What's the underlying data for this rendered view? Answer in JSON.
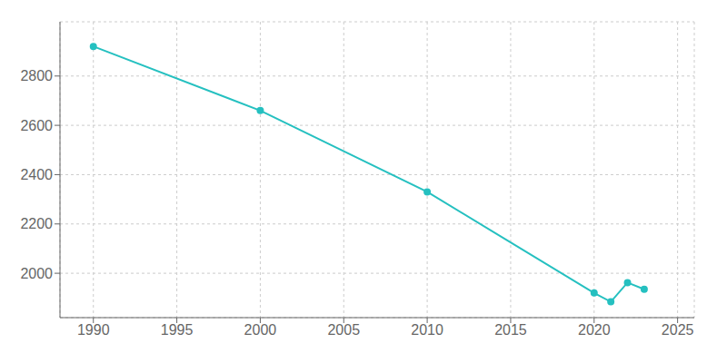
{
  "chart_data": {
    "type": "line",
    "x": [
      1990,
      2000,
      2010,
      2020,
      2021,
      2022,
      2023
    ],
    "values": [
      2920,
      2660,
      2330,
      1920,
      1884,
      1962,
      1935
    ],
    "color": "#25C0C0",
    "marker": "circle",
    "xlim": [
      1988,
      2026
    ],
    "ylim": [
      1820,
      3020
    ],
    "xticks": [
      1990,
      1995,
      2000,
      2005,
      2010,
      2015,
      2020,
      2025
    ],
    "yticks": [
      2000,
      2200,
      2400,
      2600,
      2800
    ],
    "grid": true
  }
}
